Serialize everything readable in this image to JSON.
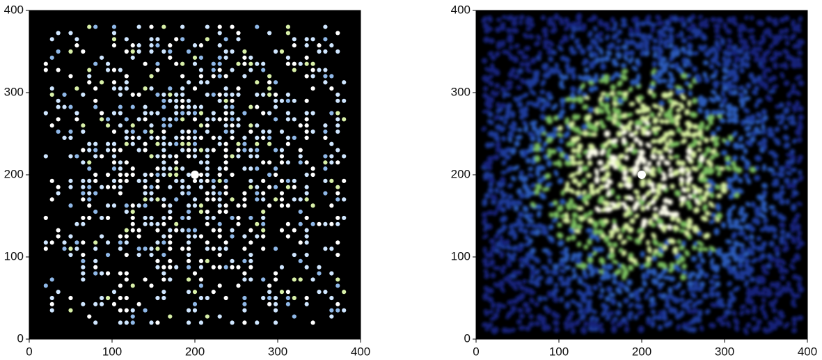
{
  "chart_data": [
    {
      "type": "image",
      "style": "dots",
      "xlim": [
        0,
        400
      ],
      "ylim": [
        0,
        400
      ],
      "xticks": [
        0,
        100,
        200,
        300,
        400
      ],
      "yticks": [
        0,
        100,
        200,
        300,
        400
      ]
    },
    {
      "type": "image",
      "style": "blur",
      "xlim": [
        0,
        400
      ],
      "ylim": [
        0,
        400
      ],
      "xticks": [
        0,
        100,
        200,
        300,
        400
      ],
      "yticks": [
        0,
        100,
        200,
        300,
        400
      ]
    }
  ]
}
